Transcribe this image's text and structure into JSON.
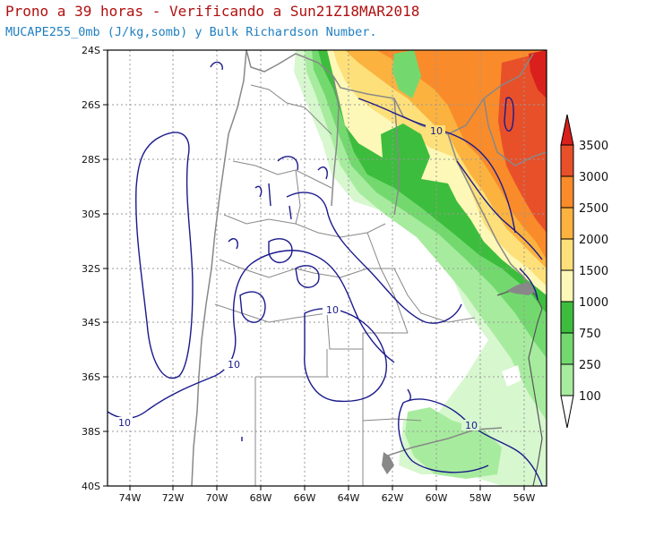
{
  "title": "Prono a 39 horas - Verificando a Sun21Z18MAR2018",
  "subtitle": "MUCAPE255_0mb (J/kg,somb) y Bulk Richardson Number.",
  "map": {
    "lon_ticks": [
      "74W",
      "72W",
      "70W",
      "68W",
      "66W",
      "64W",
      "62W",
      "60W",
      "58W",
      "56W"
    ],
    "lat_ticks": [
      "24S",
      "26S",
      "28S",
      "30S",
      "32S",
      "34S",
      "36S",
      "38S",
      "40S"
    ],
    "lon_range": [
      -75,
      -55
    ],
    "lat_range": [
      -40,
      -24
    ],
    "grid": true,
    "contour_labels": [
      "10",
      "10",
      "10",
      "10",
      "10"
    ]
  },
  "colorbar": {
    "labels": [
      "3500",
      "3000",
      "2500",
      "2000",
      "1500",
      "1000",
      "750",
      "250",
      "100"
    ],
    "colors": [
      "#e8502a",
      "#f98b2a",
      "#fbb23f",
      "#fde07a",
      "#fdf8b8",
      "#3dbd3d",
      "#73d96f",
      "#a7ec9e",
      "#d7f7cf"
    ],
    "top_color": "#d9201c"
  },
  "colors": {
    "contour": "#1a1a8c",
    "border": "#888888",
    "grid": "#999999"
  }
}
